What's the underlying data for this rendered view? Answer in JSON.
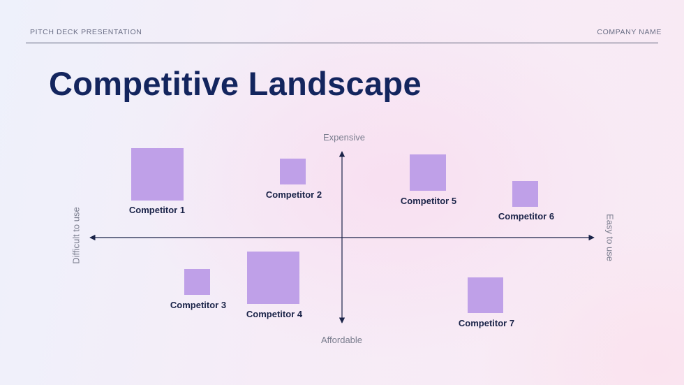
{
  "header": {
    "left": "PITCH DECK PRESENTATION",
    "right": "COMPANY NAME"
  },
  "title": "Competitive Landscape",
  "axes": {
    "top": "Expensive",
    "bottom": "Affordable",
    "left": "Difficult to use",
    "right": "Easy to use"
  },
  "colors": {
    "title": "#13255e",
    "box": "#bfa0e8",
    "axis": "#1a2348"
  },
  "competitors": [
    {
      "name": "Competitor 1"
    },
    {
      "name": "Competitor 2"
    },
    {
      "name": "Competitor 3"
    },
    {
      "name": "Competitor 4"
    },
    {
      "name": "Competitor 5"
    },
    {
      "name": "Competitor 6"
    },
    {
      "name": "Competitor 7"
    }
  ]
}
